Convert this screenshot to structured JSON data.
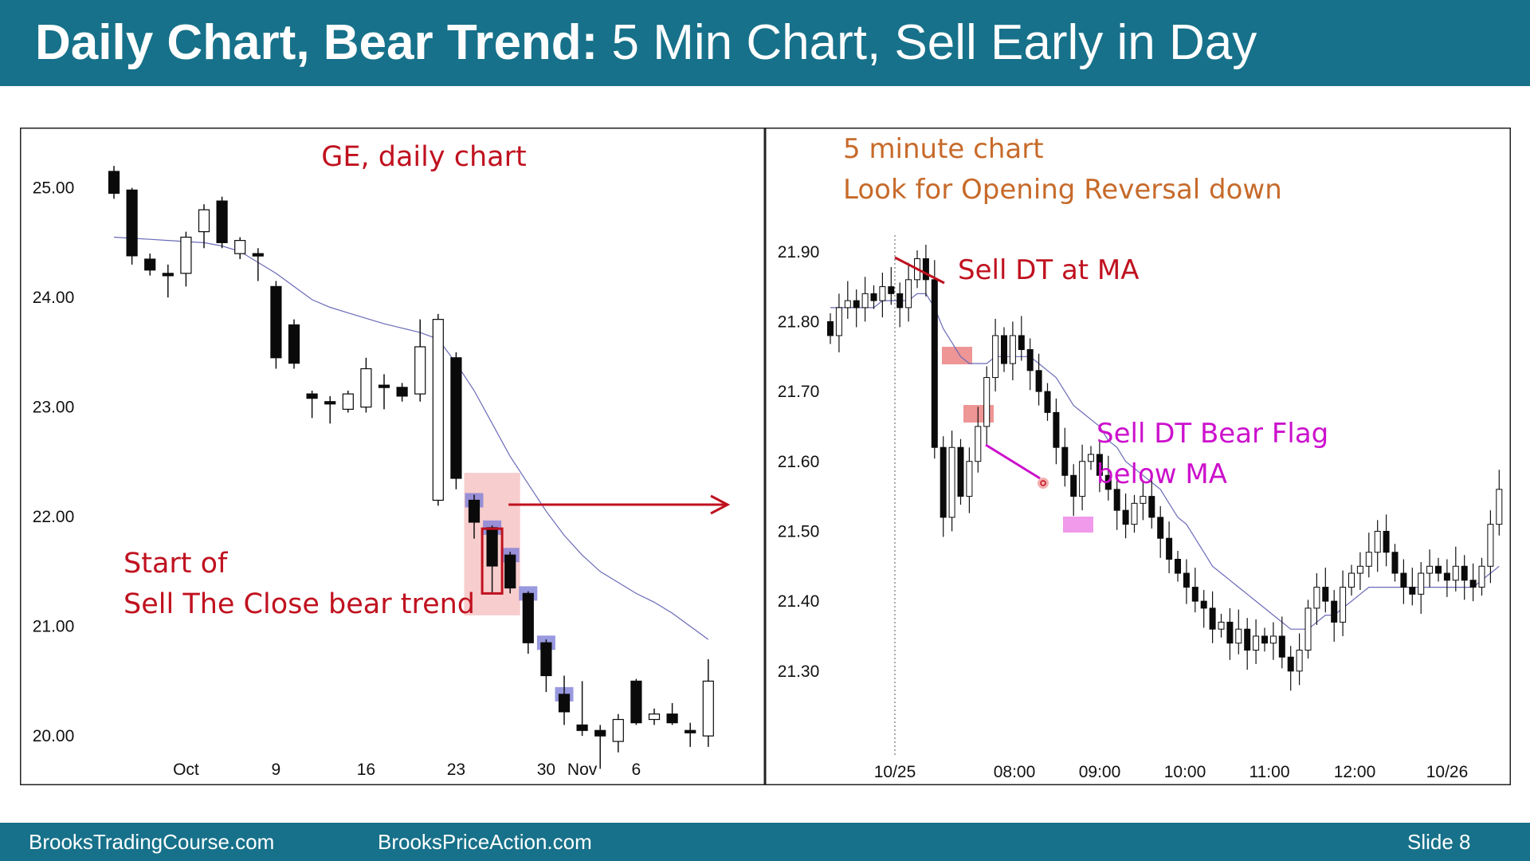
{
  "header": {
    "title_bold": "Daily Chart, Bear Trend:",
    "title_rest": " 5 Min Chart, Sell Early in Day"
  },
  "footer": {
    "left": "BrooksTradingCourse.com",
    "center": "BrooksPriceAction.com",
    "right": "Slide  8"
  },
  "colors": {
    "header_bg": "#17718a",
    "annotation_red": "#c0111f",
    "annotation_orange": "#c76a2a",
    "annotation_magenta": "#cc11cc",
    "ma_line": "#6a6ab8",
    "signal_blue": "#7f7fd8"
  },
  "chart_data": [
    {
      "type": "candlestick",
      "title": "GE, daily chart",
      "ylim": [
        19.55,
        25.55
      ],
      "yticks": [
        25.0,
        24.0,
        23.0,
        22.0,
        21.0,
        20.0
      ],
      "ytick_labels": [
        "25.00",
        "24.00",
        "23.00",
        "22.00",
        "21.00",
        "20.00"
      ],
      "xtick_labels": [
        {
          "label": "Oct",
          "index": 4
        },
        {
          "label": "9",
          "index": 9
        },
        {
          "label": "16",
          "index": 14
        },
        {
          "label": "23",
          "index": 19
        },
        {
          "label": "30",
          "index": 24
        },
        {
          "label": "Nov",
          "index": 26
        },
        {
          "label": "6",
          "index": 29
        }
      ],
      "candles": [
        {
          "o": 25.15,
          "h": 25.2,
          "l": 24.9,
          "c": 24.95
        },
        {
          "o": 24.98,
          "h": 25.0,
          "l": 24.3,
          "c": 24.38
        },
        {
          "o": 24.35,
          "h": 24.4,
          "l": 24.2,
          "c": 24.25
        },
        {
          "o": 24.22,
          "h": 24.3,
          "l": 24.0,
          "c": 24.2
        },
        {
          "o": 24.22,
          "h": 24.6,
          "l": 24.1,
          "c": 24.55
        },
        {
          "o": 24.6,
          "h": 24.85,
          "l": 24.45,
          "c": 24.8
        },
        {
          "o": 24.88,
          "h": 24.92,
          "l": 24.45,
          "c": 24.5
        },
        {
          "o": 24.4,
          "h": 24.55,
          "l": 24.35,
          "c": 24.52
        },
        {
          "o": 24.4,
          "h": 24.45,
          "l": 24.15,
          "c": 24.4
        },
        {
          "o": 24.1,
          "h": 24.15,
          "l": 23.35,
          "c": 23.45
        },
        {
          "o": 23.75,
          "h": 23.8,
          "l": 23.35,
          "c": 23.4
        },
        {
          "o": 23.12,
          "h": 23.15,
          "l": 22.9,
          "c": 23.08
        },
        {
          "o": 23.05,
          "h": 23.1,
          "l": 22.85,
          "c": 23.05
        },
        {
          "o": 22.98,
          "h": 23.15,
          "l": 22.95,
          "c": 23.12
        },
        {
          "o": 23.0,
          "h": 23.45,
          "l": 22.95,
          "c": 23.35
        },
        {
          "o": 23.2,
          "h": 23.3,
          "l": 22.98,
          "c": 23.2
        },
        {
          "o": 23.18,
          "h": 23.22,
          "l": 23.05,
          "c": 23.1
        },
        {
          "o": 23.12,
          "h": 23.8,
          "l": 23.05,
          "c": 23.55
        },
        {
          "o": 22.15,
          "h": 23.85,
          "l": 22.1,
          "c": 23.8
        },
        {
          "o": 23.45,
          "h": 23.5,
          "l": 22.25,
          "c": 22.35
        },
        {
          "o": 22.15,
          "h": 22.2,
          "l": 21.8,
          "c": 21.95
        },
        {
          "o": 21.9,
          "h": 21.92,
          "l": 21.3,
          "c": 21.55
        },
        {
          "o": 21.65,
          "h": 21.68,
          "l": 21.3,
          "c": 21.35
        },
        {
          "o": 21.3,
          "h": 21.32,
          "l": 20.75,
          "c": 20.85
        },
        {
          "o": 20.85,
          "h": 20.88,
          "l": 20.4,
          "c": 20.55
        },
        {
          "o": 20.38,
          "h": 20.55,
          "l": 20.1,
          "c": 20.22
        },
        {
          "o": 20.1,
          "h": 20.5,
          "l": 20.0,
          "c": 20.05
        },
        {
          "o": 20.05,
          "h": 20.1,
          "l": 19.7,
          "c": 20.0
        },
        {
          "o": 19.95,
          "h": 20.2,
          "l": 19.85,
          "c": 20.15
        },
        {
          "o": 20.5,
          "h": 20.52,
          "l": 20.1,
          "c": 20.12
        },
        {
          "o": 20.15,
          "h": 20.25,
          "l": 20.1,
          "c": 20.2
        },
        {
          "o": 20.2,
          "h": 20.3,
          "l": 20.1,
          "c": 20.12
        },
        {
          "o": 20.05,
          "h": 20.12,
          "l": 19.9,
          "c": 20.05
        },
        {
          "o": 20.0,
          "h": 20.7,
          "l": 19.9,
          "c": 20.5
        }
      ],
      "moving_average": [
        24.55,
        24.54,
        24.53,
        24.52,
        24.51,
        24.5,
        24.47,
        24.42,
        24.32,
        24.22,
        24.1,
        23.98,
        23.91,
        23.86,
        23.81,
        23.76,
        23.72,
        23.68,
        23.62,
        23.4,
        23.15,
        22.85,
        22.55,
        22.3,
        22.05,
        21.83,
        21.65,
        21.5,
        21.4,
        21.3,
        21.22,
        21.12,
        21.0,
        20.88
      ],
      "signal_bar_markers": [
        20,
        21,
        22,
        23,
        24,
        25
      ],
      "annotations": [
        {
          "text": "Start of",
          "color": "red"
        },
        {
          "text": "Sell The Close bear trend",
          "color": "red"
        }
      ]
    },
    {
      "type": "candlestick",
      "title": "5 minute chart",
      "subtitle": "Look for Opening Reversal down",
      "ylim": [
        21.245,
        21.975
      ],
      "yticks": [
        21.9,
        21.8,
        21.7,
        21.6,
        21.5,
        21.4,
        21.3
      ],
      "ytick_labels": [
        "21.90",
        "21.80",
        "21.70",
        "21.60",
        "21.50",
        "21.40",
        "21.30"
      ],
      "xtick_labels": [
        "10/25",
        "08:00",
        "09:00",
        "10:00",
        "11:00",
        "12:00",
        "10/26"
      ],
      "annotations": [
        {
          "text": "Sell DT at MA",
          "color": "red"
        },
        {
          "text": "Sell DT Bear Flag",
          "color": "magenta"
        },
        {
          "text": "below MA",
          "color": "magenta"
        }
      ],
      "closes": [
        21.78,
        21.82,
        21.83,
        21.82,
        21.84,
        21.83,
        21.85,
        21.84,
        21.82,
        21.86,
        21.89,
        21.86,
        21.62,
        21.52,
        21.62,
        21.55,
        21.6,
        21.65,
        21.72,
        21.78,
        21.74,
        21.78,
        21.76,
        21.73,
        21.7,
        21.67,
        21.62,
        21.58,
        21.55,
        21.6,
        21.61,
        21.58,
        21.56,
        21.53,
        21.51,
        21.54,
        21.55,
        21.52,
        21.49,
        21.46,
        21.44,
        21.42,
        21.4,
        21.39,
        21.36,
        21.37,
        21.34,
        21.36,
        21.33,
        21.35,
        21.34,
        21.35,
        21.32,
        21.3,
        21.33,
        21.39,
        21.42,
        21.4,
        21.37,
        21.42,
        21.44,
        21.45,
        21.47,
        21.5,
        21.47,
        21.44,
        21.42,
        21.41,
        21.44,
        21.45,
        21.44,
        21.43,
        21.45,
        21.43,
        21.42,
        21.45,
        21.51,
        21.56
      ],
      "moving_average": [
        21.82,
        21.82,
        21.82,
        21.82,
        21.82,
        21.82,
        21.83,
        21.83,
        21.83,
        21.83,
        21.84,
        21.84,
        21.82,
        21.79,
        21.77,
        21.75,
        21.74,
        21.74,
        21.74,
        21.75,
        21.75,
        21.75,
        21.75,
        21.75,
        21.74,
        21.73,
        21.72,
        21.7,
        21.68,
        21.67,
        21.66,
        21.65,
        21.63,
        21.62,
        21.6,
        21.59,
        21.58,
        21.57,
        21.56,
        21.54,
        21.52,
        21.51,
        21.49,
        21.47,
        21.45,
        21.44,
        21.43,
        21.42,
        21.41,
        21.4,
        21.39,
        21.38,
        21.37,
        21.36,
        21.36,
        21.36,
        21.37,
        21.38,
        21.38,
        21.39,
        21.4,
        21.41,
        21.42,
        21.42,
        21.42,
        21.42,
        21.42,
        21.42,
        21.42,
        21.42,
        21.42,
        21.42,
        21.42,
        21.42,
        21.42,
        21.43,
        21.44,
        21.45
      ]
    }
  ]
}
